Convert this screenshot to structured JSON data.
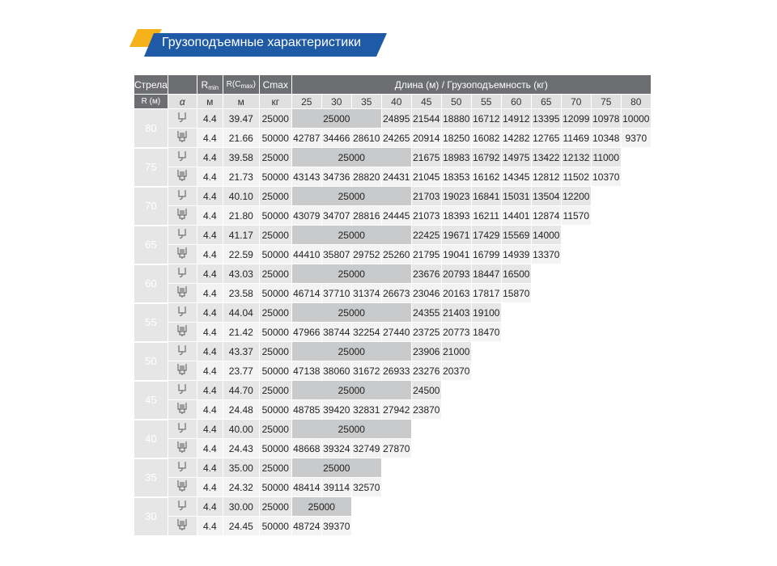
{
  "header": {
    "title": "Грузоподъемные характеристики"
  },
  "table": {
    "head": {
      "boom": "Стрела",
      "rmin": {
        "main": "R",
        "sub": "min"
      },
      "rcmax": {
        "main": "R(C",
        "sub": "max",
        "tail": ")"
      },
      "cmax": "Cmax",
      "span": "Длина (м) / Грузоподъемность (кг)"
    },
    "units": {
      "boom": "R (м)",
      "alpha": "α",
      "rmin": "м",
      "rcmax": "м",
      "cmax": "кг"
    },
    "lengths": [
      25,
      30,
      35,
      40,
      45,
      50,
      55,
      60,
      65,
      70,
      75,
      80
    ],
    "groups": [
      {
        "boom": 80,
        "rows": [
          {
            "rmin": "4.4",
            "rcmax": "39.47",
            "cmax": "25000",
            "merged": "25000",
            "values": [
              "24895",
              "21544",
              "18880",
              "16712",
              "14912",
              "13395",
              "12099",
              "10978",
              "10000"
            ]
          },
          {
            "rmin": "4.4",
            "rcmax": "21.66",
            "cmax": "50000",
            "values": [
              "42787",
              "34466",
              "28610",
              "24265",
              "20914",
              "18250",
              "16082",
              "14282",
              "12765",
              "11469",
              "10348",
              "9370"
            ]
          }
        ]
      },
      {
        "boom": 75,
        "rows": [
          {
            "rmin": "4.4",
            "rcmax": "39.58",
            "cmax": "25000",
            "merged": "25000",
            "values": [
              "21675",
              "18983",
              "16792",
              "14975",
              "13422",
              "12132",
              "11000"
            ]
          },
          {
            "rmin": "4.4",
            "rcmax": "21.73",
            "cmax": "50000",
            "values": [
              "43143",
              "34736",
              "28820",
              "24431",
              "21045",
              "18353",
              "16162",
              "14345",
              "12812",
              "11502",
              "10370"
            ]
          }
        ]
      },
      {
        "boom": 70,
        "rows": [
          {
            "rmin": "4.4",
            "rcmax": "40.10",
            "cmax": "25000",
            "merged": "25000",
            "values": [
              "21703",
              "19023",
              "16841",
              "15031",
              "13504",
              "12200"
            ]
          },
          {
            "rmin": "4.4",
            "rcmax": "21.80",
            "cmax": "50000",
            "values": [
              "43079",
              "34707",
              "28816",
              "24445",
              "21073",
              "18393",
              "16211",
              "14401",
              "12874",
              "11570"
            ]
          }
        ]
      },
      {
        "boom": 65,
        "rows": [
          {
            "rmin": "4.4",
            "rcmax": "41.17",
            "cmax": "25000",
            "merged": "25000",
            "values": [
              "22425",
              "19671",
              "17429",
              "15569",
              "14000"
            ]
          },
          {
            "rmin": "4.4",
            "rcmax": "22.59",
            "cmax": "50000",
            "values": [
              "44410",
              "35807",
              "29752",
              "25260",
              "21795",
              "19041",
              "16799",
              "14939",
              "13370"
            ]
          }
        ]
      },
      {
        "boom": 60,
        "rows": [
          {
            "rmin": "4.4",
            "rcmax": "43.03",
            "cmax": "25000",
            "merged": "25000",
            "values": [
              "23676",
              "20793",
              "18447",
              "16500"
            ]
          },
          {
            "rmin": "4.4",
            "rcmax": "23.58",
            "cmax": "50000",
            "values": [
              "46714",
              "37710",
              "31374",
              "26673",
              "23046",
              "20163",
              "17817",
              "15870"
            ]
          }
        ]
      },
      {
        "boom": 55,
        "rows": [
          {
            "rmin": "4.4",
            "rcmax": "44.04",
            "cmax": "25000",
            "merged": "25000",
            "values": [
              "24355",
              "21403",
              "19100"
            ]
          },
          {
            "rmin": "4.4",
            "rcmax": "21.42",
            "cmax": "50000",
            "values": [
              "47966",
              "38744",
              "32254",
              "27440",
              "23725",
              "20773",
              "18470"
            ]
          }
        ]
      },
      {
        "boom": 50,
        "rows": [
          {
            "rmin": "4.4",
            "rcmax": "43.37",
            "cmax": "25000",
            "merged": "25000",
            "values": [
              "23906",
              "21000"
            ]
          },
          {
            "rmin": "4.4",
            "rcmax": "23.77",
            "cmax": "50000",
            "values": [
              "47138",
              "38060",
              "31672",
              "26933",
              "23276",
              "20370"
            ]
          }
        ]
      },
      {
        "boom": 45,
        "rows": [
          {
            "rmin": "4.4",
            "rcmax": "44.70",
            "cmax": "25000",
            "merged": "25000",
            "values": [
              "24500"
            ]
          },
          {
            "rmin": "4.4",
            "rcmax": "24.48",
            "cmax": "50000",
            "values": [
              "48785",
              "39420",
              "32831",
              "27942",
              "23870"
            ]
          }
        ]
      },
      {
        "boom": 40,
        "rows": [
          {
            "rmin": "4.4",
            "rcmax": "40.00",
            "cmax": "25000",
            "merged": "25000",
            "values": []
          },
          {
            "rmin": "4.4",
            "rcmax": "24.43",
            "cmax": "50000",
            "values": [
              "48668",
              "39324",
              "32749",
              "27870"
            ]
          }
        ]
      },
      {
        "boom": 35,
        "rows": [
          {
            "rmin": "4.4",
            "rcmax": "35.00",
            "cmax": "25000",
            "merged": "25000",
            "values": []
          },
          {
            "rmin": "4.4",
            "rcmax": "24.32",
            "cmax": "50000",
            "values": [
              "48414",
              "39114",
              "32570"
            ]
          }
        ]
      },
      {
        "boom": 30,
        "rows": [
          {
            "rmin": "4.4",
            "rcmax": "30.00",
            "cmax": "25000",
            "merged": "25000",
            "values": []
          },
          {
            "rmin": "4.4",
            "rcmax": "24.45",
            "cmax": "50000",
            "values": [
              "48724",
              "39370"
            ]
          }
        ]
      }
    ]
  }
}
